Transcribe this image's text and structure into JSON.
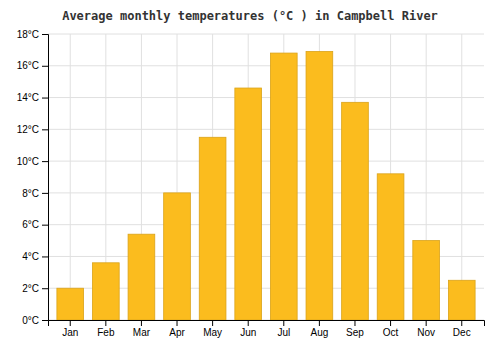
{
  "chart_data": {
    "type": "bar",
    "title": "Average monthly temperatures (°C ) in Campbell River",
    "categories": [
      "Jan",
      "Feb",
      "Mar",
      "Apr",
      "May",
      "Jun",
      "Jul",
      "Aug",
      "Sep",
      "Oct",
      "Nov",
      "Dec"
    ],
    "values": [
      2.0,
      3.6,
      5.4,
      8.0,
      11.5,
      14.6,
      16.8,
      16.9,
      13.7,
      9.2,
      5.0,
      2.5
    ],
    "color": "#FBBC1E",
    "ylim": [
      0,
      18
    ],
    "yticks": [
      {
        "value": 0,
        "label": "0°C"
      },
      {
        "value": 2,
        "label": "2°C"
      },
      {
        "value": 4,
        "label": "4°C"
      },
      {
        "value": 6,
        "label": "6°C"
      },
      {
        "value": 8,
        "label": "8°C"
      },
      {
        "value": 10,
        "label": "10°C"
      },
      {
        "value": 12,
        "label": "12°C"
      },
      {
        "value": 14,
        "label": "14°C"
      },
      {
        "value": 16,
        "label": "16°C"
      },
      {
        "value": 18,
        "label": "18°C"
      }
    ],
    "grid": true
  }
}
